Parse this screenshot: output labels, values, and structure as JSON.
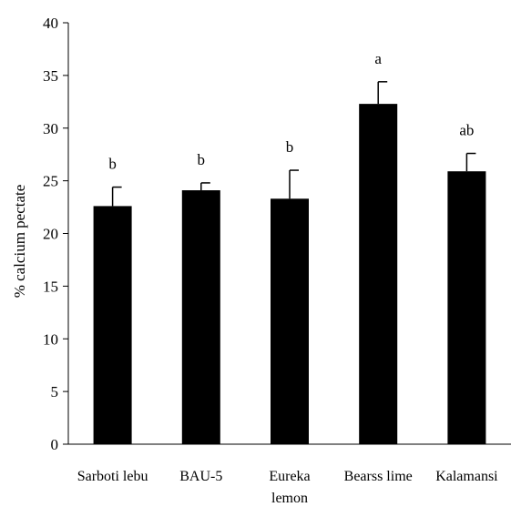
{
  "chart_data": {
    "type": "bar",
    "title": "",
    "xlabel": "",
    "ylabel": "% calcium pectate",
    "ylim": [
      0,
      40
    ],
    "yticks": [
      0,
      5,
      10,
      15,
      20,
      25,
      30,
      35,
      40
    ],
    "grid": false,
    "legend": "none",
    "categories": [
      [
        "Sarboti lebu"
      ],
      [
        "BAU-5"
      ],
      [
        "Eureka",
        "lemon"
      ],
      [
        "Bearss lime"
      ],
      [
        "Kalamansi"
      ]
    ],
    "values": [
      22.6,
      24.1,
      23.3,
      32.3,
      25.9
    ],
    "error_upper": [
      1.8,
      0.7,
      2.7,
      2.1,
      1.7
    ],
    "significance_labels": [
      "b",
      "b",
      "b",
      "a",
      "ab"
    ],
    "bar_color": "#000000"
  }
}
